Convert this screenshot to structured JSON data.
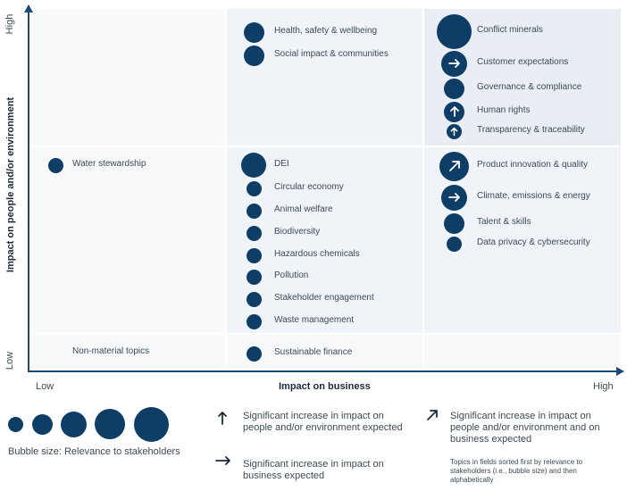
{
  "axes": {
    "y_label": "Impact on people and/or environment",
    "y_high": "High",
    "y_low": "Low",
    "x_label": "Impact on business",
    "x_low": "Low",
    "x_high": "High"
  },
  "topics": {
    "water_stewardship": "Water stewardship",
    "non_material": "Non-material topics",
    "health_safety": "Health, safety & wellbeing",
    "social_impact": "Social impact & communities",
    "dei": "DEI",
    "circular_economy": "Circular economy",
    "animal_welfare": "Animal welfare",
    "biodiversity": "Biodiversity",
    "hazardous_chemicals": "Hazardous chemicals",
    "pollution": "Pollution",
    "stakeholder_engagement": "Stakeholder engagement",
    "waste_management": "Waste management",
    "sustainable_finance": "Sustainable finance",
    "conflict_minerals": "Conflict minerals",
    "customer_expectations": "Customer expectations",
    "governance_compliance": "Governance & compliance",
    "human_rights": "Human rights",
    "transparency": "Transparency & traceability",
    "product_innovation": "Product innovation & quality",
    "climate": "Climate, emissions & energy",
    "talent": "Talent & skills",
    "data_privacy": "Data privacy & cybersecurity"
  },
  "legend": {
    "bubble_size": "Bubble size: Relevance to stakeholders",
    "up_text": "Significant increase in impact on people and/or environment expected",
    "right_text": "Significant increase in impact on business expected",
    "diag_text": "Significant increase in impact on people and/or environment and on business expected",
    "note": "Topics in fields sorted first by relevance to stakeholders (i.e., bubble size) and then alphabetically"
  },
  "colors": {
    "bubble": "#0e3d66",
    "axis": "#1c4a72"
  }
}
